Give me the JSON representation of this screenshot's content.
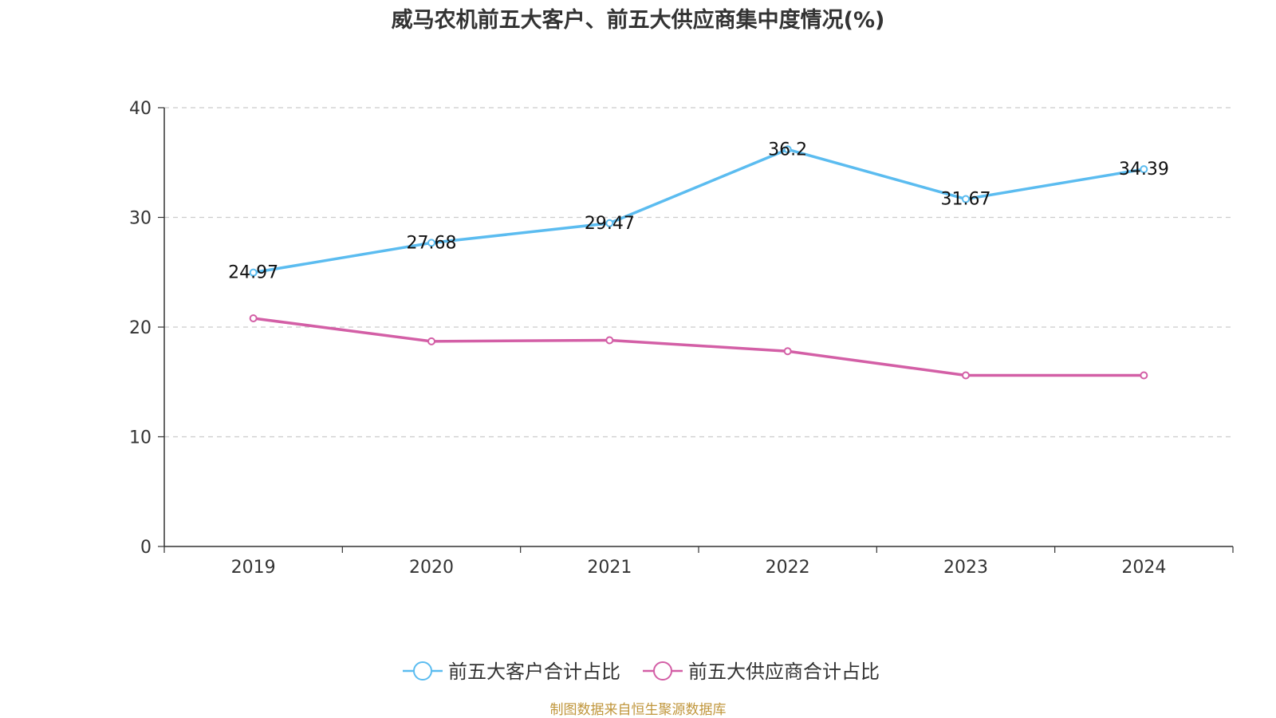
{
  "chart_data": {
    "type": "line",
    "title": "威马农机前五大客户、前五大供应商集中度情况(%)",
    "categories": [
      "2019",
      "2020",
      "2021",
      "2022",
      "2023",
      "2024"
    ],
    "ylim": [
      0,
      40
    ],
    "yticks": [
      0,
      10,
      20,
      30,
      40
    ],
    "grid": true,
    "legend_position": "bottom",
    "series": [
      {
        "name": "前五大客户合计占比",
        "color": "#5bbcf0",
        "values": [
          24.97,
          27.68,
          29.47,
          36.2,
          31.67,
          34.39
        ],
        "labels": [
          "24.97",
          "27.68",
          "29.47",
          "36.2",
          "31.67",
          "34.39"
        ],
        "show_labels": true
      },
      {
        "name": "前五大供应商合计占比",
        "color": "#d35fa6",
        "values": [
          20.8,
          18.7,
          18.8,
          17.8,
          15.6,
          15.6
        ],
        "show_labels": false
      }
    ],
    "source": "制图数据来自恒生聚源数据库"
  }
}
